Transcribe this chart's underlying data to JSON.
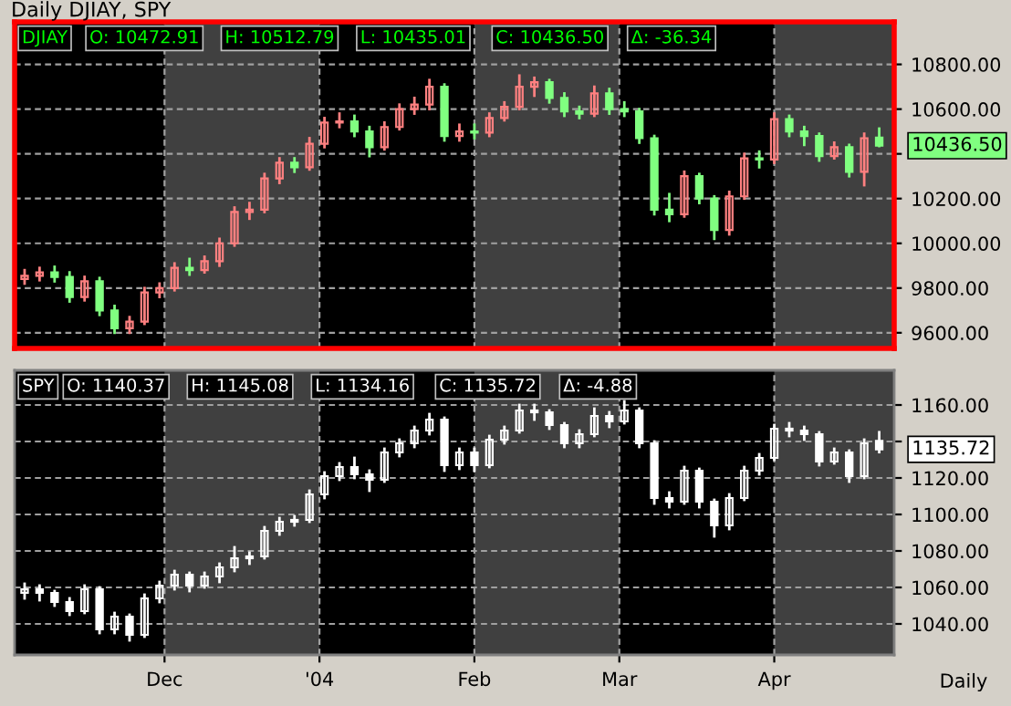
{
  "chart_data": [
    {
      "type": "candlestick",
      "title": "Daily DJIAY, SPY",
      "x": [
        "2003-11-03",
        "2003-11-06",
        "2003-11-09",
        "2003-11-12",
        "2003-11-15",
        "2003-11-18",
        "2003-11-21",
        "2003-11-24",
        "2003-11-27",
        "2003-11-30",
        "2003-12-03",
        "2003-12-06",
        "2003-12-09",
        "2003-12-12",
        "2003-12-15",
        "2003-12-18",
        "2003-12-21",
        "2003-12-24",
        "2003-12-27",
        "2003-12-30",
        "2004-01-02",
        "2004-01-05",
        "2004-01-08",
        "2004-01-11",
        "2004-01-14",
        "2004-01-17",
        "2004-01-20",
        "2004-01-23",
        "2004-01-26",
        "2004-01-29",
        "2004-02-01",
        "2004-02-04",
        "2004-02-07",
        "2004-02-10",
        "2004-02-13",
        "2004-02-16",
        "2004-02-19",
        "2004-02-22",
        "2004-02-25",
        "2004-02-28",
        "2004-03-02",
        "2004-03-05",
        "2004-03-08",
        "2004-03-11",
        "2004-03-14",
        "2004-03-17",
        "2004-03-20",
        "2004-03-23",
        "2004-03-26",
        "2004-03-29",
        "2004-04-01",
        "2004-04-04",
        "2004-04-07",
        "2004-04-10",
        "2004-04-13",
        "2004-04-16",
        "2004-04-19",
        "2004-04-22"
      ],
      "ohlc": [
        [
          9840,
          9880,
          9820,
          9855
        ],
        [
          9855,
          9890,
          9835,
          9870
        ],
        [
          9870,
          9895,
          9830,
          9850
        ],
        [
          9850,
          9870,
          9740,
          9760
        ],
        [
          9760,
          9850,
          9745,
          9830
        ],
        [
          9830,
          9845,
          9680,
          9700
        ],
        [
          9700,
          9720,
          9600,
          9620
        ],
        [
          9620,
          9670,
          9600,
          9650
        ],
        [
          9650,
          9800,
          9640,
          9780
        ],
        [
          9780,
          9820,
          9760,
          9800
        ],
        [
          9800,
          9910,
          9790,
          9890
        ],
        [
          9890,
          9930,
          9860,
          9880
        ],
        [
          9880,
          9940,
          9870,
          9920
        ],
        [
          9920,
          10020,
          9900,
          10000
        ],
        [
          10000,
          10160,
          9990,
          10140
        ],
        [
          10140,
          10180,
          10110,
          10150
        ],
        [
          10150,
          10310,
          10140,
          10290
        ],
        [
          10290,
          10380,
          10270,
          10360
        ],
        [
          10360,
          10380,
          10320,
          10340
        ],
        [
          10340,
          10470,
          10330,
          10445
        ],
        [
          10445,
          10560,
          10430,
          10540
        ],
        [
          10540,
          10580,
          10520,
          10545
        ],
        [
          10545,
          10570,
          10480,
          10500
        ],
        [
          10500,
          10520,
          10390,
          10430
        ],
        [
          10430,
          10540,
          10420,
          10520
        ],
        [
          10520,
          10620,
          10510,
          10600
        ],
        [
          10600,
          10650,
          10580,
          10620
        ],
        [
          10620,
          10730,
          10600,
          10700
        ],
        [
          10700,
          10710,
          10460,
          10480
        ],
        [
          10480,
          10530,
          10460,
          10500
        ],
        [
          10500,
          10530,
          10470,
          10495
        ],
        [
          10495,
          10580,
          10480,
          10560
        ],
        [
          10560,
          10630,
          10550,
          10610
        ],
        [
          10610,
          10750,
          10600,
          10700
        ],
        [
          10700,
          10740,
          10660,
          10720
        ],
        [
          10720,
          10730,
          10630,
          10650
        ],
        [
          10650,
          10670,
          10570,
          10590
        ],
        [
          10590,
          10610,
          10560,
          10580
        ],
        [
          10580,
          10700,
          10570,
          10670
        ],
        [
          10670,
          10690,
          10580,
          10600
        ],
        [
          10600,
          10630,
          10570,
          10590
        ],
        [
          10590,
          10600,
          10450,
          10470
        ],
        [
          10470,
          10480,
          10130,
          10150
        ],
        [
          10150,
          10220,
          10100,
          10130
        ],
        [
          10130,
          10320,
          10120,
          10300
        ],
        [
          10300,
          10310,
          10180,
          10200
        ],
        [
          10200,
          10210,
          10020,
          10060
        ],
        [
          10060,
          10230,
          10040,
          10210
        ],
        [
          10210,
          10400,
          10200,
          10380
        ],
        [
          10380,
          10410,
          10340,
          10375
        ],
        [
          10375,
          10580,
          10360,
          10555
        ],
        [
          10555,
          10570,
          10480,
          10500
        ],
        [
          10500,
          10520,
          10440,
          10480
        ],
        [
          10480,
          10490,
          10370,
          10390
        ],
        [
          10390,
          10450,
          10380,
          10430
        ],
        [
          10430,
          10440,
          10300,
          10320
        ],
        [
          10320,
          10490,
          10260,
          10470
        ],
        [
          10472.91,
          10512.79,
          10435.01,
          10436.5
        ]
      ],
      "colors": [
        "#ff8080",
        "#ff8080",
        "#80ff80",
        "#80ff80",
        "#ff8080",
        "#80ff80",
        "#80ff80",
        "#ff8080",
        "#ff8080",
        "#ff8080",
        "#ff8080",
        "#80ff80",
        "#ff8080",
        "#ff8080",
        "#ff8080",
        "#ff8080",
        "#ff8080",
        "#ff8080",
        "#80ff80",
        "#ff8080",
        "#ff8080",
        "#ff8080",
        "#80ff80",
        "#80ff80",
        "#ff8080",
        "#ff8080",
        "#ff8080",
        "#ff8080",
        "#80ff80",
        "#ff8080",
        "#80ff80",
        "#ff8080",
        "#ff8080",
        "#ff8080",
        "#ff8080",
        "#80ff80",
        "#80ff80",
        "#80ff80",
        "#ff8080",
        "#80ff80",
        "#80ff80",
        "#80ff80",
        "#80ff80",
        "#80ff80",
        "#ff8080",
        "#80ff80",
        "#80ff80",
        "#ff8080",
        "#ff8080",
        "#80ff80",
        "#ff8080",
        "#80ff80",
        "#80ff80",
        "#80ff80",
        "#ff8080",
        "#80ff80",
        "#ff8080",
        "#80ff80"
      ],
      "xlim": [
        "2003-11-01",
        "2004-04-25"
      ],
      "ylim": [
        9530,
        10990
      ],
      "yticks": [
        {
          "value": 9600,
          "label": "9600.00"
        },
        {
          "value": 9800,
          "label": "9800.00"
        },
        {
          "value": 10000,
          "label": "10000.00"
        },
        {
          "value": 10200,
          "label": "10200.00"
        },
        {
          "value": 10400,
          "label": null
        },
        {
          "value": 10600,
          "label": "10600.00"
        },
        {
          "value": 10800,
          "label": "10800.00"
        }
      ],
      "tick_labels": "y",
      "grid": "y",
      "bands": [
        {
          "axis": "x",
          "from": "2003-11-01",
          "to": "2003-12-01",
          "color": "#000000"
        },
        {
          "axis": "x",
          "from": "2004-01-01",
          "to": "2004-02-01",
          "color": "#000000"
        },
        {
          "axis": "x",
          "from": "2004-03-01",
          "to": "2004-04-01",
          "color": "#000000"
        }
      ],
      "ref_lines": [
        {
          "axis": "x",
          "value": "2003-12-01",
          "color": "#a0a0a0",
          "line_style": "dashed"
        },
        {
          "axis": "x",
          "value": "2004-01-01",
          "color": "#a0a0a0",
          "line_style": "dashed"
        },
        {
          "axis": "x",
          "value": "2004-02-01",
          "color": "#a0a0a0",
          "line_style": "dashed"
        },
        {
          "axis": "x",
          "value": "2004-03-01",
          "color": "#a0a0a0",
          "line_style": "dashed"
        },
        {
          "axis": "x",
          "value": "2004-04-01",
          "color": "#a0a0a0",
          "line_style": "dashed"
        }
      ],
      "annotations": [
        "DJIAY",
        "O: 10472.91",
        "H: 10512.79",
        "L: 10435.01",
        "C: 10436.50",
        "Δ: -36.34",
        {
          "text": "10436.50",
          "x": "2004-04-22",
          "y": 10436.5
        }
      ]
    },
    {
      "type": "candlestick",
      "xlabel": "Daily",
      "x": [
        "2003-11-03",
        "2003-11-06",
        "2003-11-09",
        "2003-11-12",
        "2003-11-15",
        "2003-11-18",
        "2003-11-21",
        "2003-11-24",
        "2003-11-27",
        "2003-11-30",
        "2003-12-03",
        "2003-12-06",
        "2003-12-09",
        "2003-12-12",
        "2003-12-15",
        "2003-12-18",
        "2003-12-21",
        "2003-12-24",
        "2003-12-27",
        "2003-12-30",
        "2004-01-02",
        "2004-01-05",
        "2004-01-08",
        "2004-01-11",
        "2004-01-14",
        "2004-01-17",
        "2004-01-20",
        "2004-01-23",
        "2004-01-26",
        "2004-01-29",
        "2004-02-01",
        "2004-02-04",
        "2004-02-07",
        "2004-02-10",
        "2004-02-13",
        "2004-02-16",
        "2004-02-19",
        "2004-02-22",
        "2004-02-25",
        "2004-02-28",
        "2004-03-02",
        "2004-03-05",
        "2004-03-08",
        "2004-03-11",
        "2004-03-14",
        "2004-03-17",
        "2004-03-20",
        "2004-03-23",
        "2004-03-26",
        "2004-03-29",
        "2004-04-01",
        "2004-04-04",
        "2004-04-07",
        "2004-04-10",
        "2004-04-13",
        "2004-04-16",
        "2004-04-19",
        "2004-04-22"
      ],
      "ohlc": [
        [
          1057,
          1062,
          1054,
          1059
        ],
        [
          1059,
          1061,
          1053,
          1057
        ],
        [
          1057,
          1058,
          1050,
          1052
        ],
        [
          1052,
          1054,
          1045,
          1047
        ],
        [
          1047,
          1061,
          1046,
          1059
        ],
        [
          1059,
          1060,
          1035,
          1037
        ],
        [
          1037,
          1046,
          1035,
          1044
        ],
        [
          1044,
          1045,
          1031,
          1034
        ],
        [
          1034,
          1056,
          1033,
          1054
        ],
        [
          1054,
          1063,
          1052,
          1061
        ],
        [
          1061,
          1069,
          1059,
          1067
        ],
        [
          1067,
          1068,
          1058,
          1061
        ],
        [
          1061,
          1068,
          1060,
          1066
        ],
        [
          1066,
          1073,
          1063,
          1071
        ],
        [
          1071,
          1082,
          1069,
          1076
        ],
        [
          1076,
          1079,
          1073,
          1077
        ],
        [
          1077,
          1093,
          1076,
          1091
        ],
        [
          1091,
          1098,
          1089,
          1096
        ],
        [
          1096,
          1099,
          1094,
          1097
        ],
        [
          1097,
          1113,
          1096,
          1111
        ],
        [
          1111,
          1123,
          1109,
          1121
        ],
        [
          1121,
          1128,
          1119,
          1126
        ],
        [
          1126,
          1131,
          1120,
          1122
        ],
        [
          1122,
          1124,
          1113,
          1119
        ],
        [
          1119,
          1136,
          1118,
          1134
        ],
        [
          1134,
          1141,
          1132,
          1139
        ],
        [
          1139,
          1148,
          1137,
          1146
        ],
        [
          1146,
          1155,
          1144,
          1152
        ],
        [
          1152,
          1153,
          1124,
          1127
        ],
        [
          1127,
          1136,
          1125,
          1134
        ],
        [
          1134,
          1136,
          1124,
          1127
        ],
        [
          1127,
          1143,
          1126,
          1141
        ],
        [
          1141,
          1148,
          1139,
          1146
        ],
        [
          1146,
          1160,
          1145,
          1157
        ],
        [
          1157,
          1160,
          1152,
          1156
        ],
        [
          1156,
          1157,
          1147,
          1149
        ],
        [
          1149,
          1150,
          1137,
          1139
        ],
        [
          1139,
          1146,
          1137,
          1144
        ],
        [
          1144,
          1158,
          1143,
          1154
        ],
        [
          1154,
          1156,
          1148,
          1151
        ],
        [
          1151,
          1162,
          1150,
          1157
        ],
        [
          1157,
          1158,
          1137,
          1139
        ],
        [
          1139,
          1140,
          1106,
          1109
        ],
        [
          1109,
          1112,
          1104,
          1107
        ],
        [
          1107,
          1126,
          1106,
          1124
        ],
        [
          1124,
          1125,
          1104,
          1107
        ],
        [
          1107,
          1108,
          1088,
          1094
        ],
        [
          1094,
          1111,
          1092,
          1109
        ],
        [
          1109,
          1126,
          1108,
          1124
        ],
        [
          1124,
          1133,
          1122,
          1131
        ],
        [
          1131,
          1149,
          1130,
          1147
        ],
        [
          1147,
          1150,
          1143,
          1146
        ],
        [
          1146,
          1148,
          1141,
          1144
        ],
        [
          1144,
          1145,
          1127,
          1129
        ],
        [
          1129,
          1136,
          1128,
          1134
        ],
        [
          1134,
          1135,
          1118,
          1121
        ],
        [
          1121,
          1141,
          1120,
          1139
        ],
        [
          1140.37,
          1145.08,
          1134.16,
          1135.72
        ]
      ],
      "color": "#ffffff",
      "xlim": [
        "2003-11-01",
        "2004-04-25"
      ],
      "xticks": [
        {
          "value": "2003-12-01",
          "label": "Dec"
        },
        {
          "value": "2004-01-01",
          "label": "'04"
        },
        {
          "value": "2004-02-01",
          "label": "Feb"
        },
        {
          "value": "2004-03-01",
          "label": "Mar"
        },
        {
          "value": "2004-04-01",
          "label": "Apr"
        }
      ],
      "ylim": [
        1023,
        1179
      ],
      "yticks": [
        {
          "value": 1040,
          "label": "1040.00"
        },
        {
          "value": 1060,
          "label": "1060.00"
        },
        {
          "value": 1080,
          "label": "1080.00"
        },
        {
          "value": 1100,
          "label": "1100.00"
        },
        {
          "value": 1120,
          "label": "1120.00"
        },
        {
          "value": 1140,
          "label": null
        },
        {
          "value": 1160,
          "label": "1160.00"
        }
      ],
      "grid": "y",
      "bands": [
        {
          "axis": "x",
          "from": "2003-11-01",
          "to": "2003-12-01",
          "color": "#000000"
        },
        {
          "axis": "x",
          "from": "2004-01-01",
          "to": "2004-02-01",
          "color": "#000000"
        },
        {
          "axis": "x",
          "from": "2004-03-01",
          "to": "2004-04-01",
          "color": "#000000"
        }
      ],
      "ref_lines": [
        {
          "axis": "x",
          "value": "2003-12-01",
          "color": "#a0a0a0",
          "line_style": "dashed"
        },
        {
          "axis": "x",
          "value": "2004-01-01",
          "color": "#a0a0a0",
          "line_style": "dashed"
        },
        {
          "axis": "x",
          "value": "2004-02-01",
          "color": "#a0a0a0",
          "line_style": "dashed"
        },
        {
          "axis": "x",
          "value": "2004-03-01",
          "color": "#a0a0a0",
          "line_style": "dashed"
        },
        {
          "axis": "x",
          "value": "2004-04-01",
          "color": "#a0a0a0",
          "line_style": "dashed"
        }
      ],
      "annotations": [
        "SPY",
        "O: 1140.37",
        "H: 1145.08",
        "L: 1134.16",
        "C: 1135.72",
        "Δ: -4.88",
        {
          "text": "1135.72",
          "x": "2004-04-22",
          "y": 1135.72
        }
      ]
    }
  ]
}
